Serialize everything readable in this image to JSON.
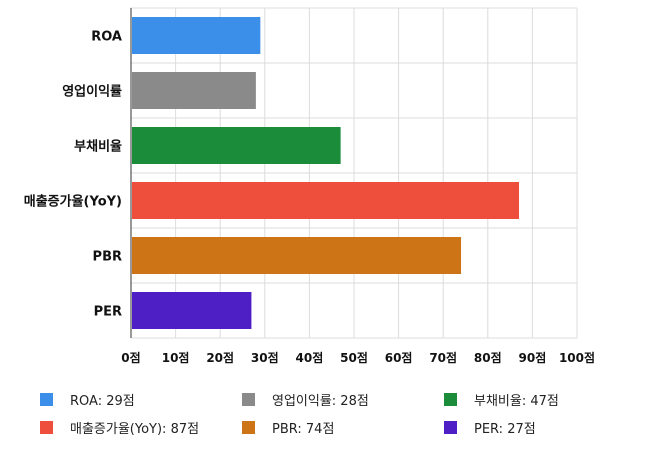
{
  "chart_data": {
    "type": "bar",
    "orientation": "horizontal",
    "categories": [
      "ROA",
      "영업이익률",
      "부채비율",
      "매출증가율(YoY)",
      "PBR",
      "PER"
    ],
    "values": [
      29,
      28,
      47,
      87,
      74,
      27
    ],
    "colors": [
      "#3b8fe8",
      "#8a8a8a",
      "#1a8c3a",
      "#ee4f3c",
      "#cc7416",
      "#4d1fc4"
    ],
    "xlim": [
      0,
      100
    ],
    "x_ticks": [
      "0점",
      "10점",
      "20점",
      "30점",
      "40점",
      "50점",
      "60점",
      "70점",
      "80점",
      "90점",
      "100점"
    ],
    "grid": true,
    "legend_position": "bottom",
    "legend": [
      {
        "label": "ROA: 29점",
        "color": "#3b8fe8"
      },
      {
        "label": "영업이익률: 28점",
        "color": "#8a8a8a"
      },
      {
        "label": "부채비율: 47점",
        "color": "#1a8c3a"
      },
      {
        "label": "매출증가율(YoY): 87점",
        "color": "#ee4f3c"
      },
      {
        "label": "PBR: 74점",
        "color": "#cc7416"
      },
      {
        "label": "PER: 27점",
        "color": "#4d1fc4"
      }
    ]
  }
}
